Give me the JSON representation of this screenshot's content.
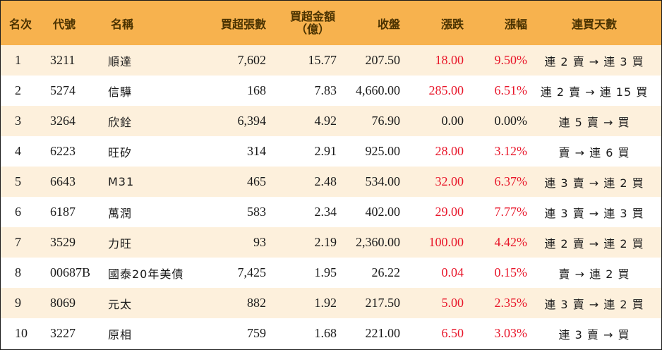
{
  "headers": {
    "rank": "名次",
    "code": "代號",
    "name": "名稱",
    "net_buy_lots": "買超張數",
    "net_buy_amount_line1": "買超金額",
    "net_buy_amount_line2": "（億）",
    "close": "收盤",
    "change": "漲跌",
    "change_pct": "漲幅",
    "consecutive_buy_days": "連買天數"
  },
  "colors": {
    "header_bg": "#f7b24e",
    "row_band": "#fdf0dc",
    "up_red": "#e8162a"
  },
  "rows": [
    {
      "rank": "1",
      "code": "3211",
      "name": "順達",
      "lots": "7,602",
      "amount": "15.77",
      "close": "207.50",
      "change": "18.00",
      "pct": "9.50%",
      "streak": "連 2 賣 → 連 3 買",
      "up": true
    },
    {
      "rank": "2",
      "code": "5274",
      "name": "信驊",
      "lots": "168",
      "amount": "7.83",
      "close": "4,660.00",
      "change": "285.00",
      "pct": "6.51%",
      "streak": "連 2 賣 → 連 15 買",
      "up": true
    },
    {
      "rank": "3",
      "code": "3264",
      "name": "欣銓",
      "lots": "6,394",
      "amount": "4.92",
      "close": "76.90",
      "change": "0.00",
      "pct": "0.00%",
      "streak": "連 5 賣 → 買",
      "up": false
    },
    {
      "rank": "4",
      "code": "6223",
      "name": "旺矽",
      "lots": "314",
      "amount": "2.91",
      "close": "925.00",
      "change": "28.00",
      "pct": "3.12%",
      "streak": "賣 → 連 6 買",
      "up": true
    },
    {
      "rank": "5",
      "code": "6643",
      "name": "M31",
      "lots": "465",
      "amount": "2.48",
      "close": "534.00",
      "change": "32.00",
      "pct": "6.37%",
      "streak": "連 3 賣 → 連 2 買",
      "up": true
    },
    {
      "rank": "6",
      "code": "6187",
      "name": "萬潤",
      "lots": "583",
      "amount": "2.34",
      "close": "402.00",
      "change": "29.00",
      "pct": "7.77%",
      "streak": "連 3 賣 → 連 3 買",
      "up": true
    },
    {
      "rank": "7",
      "code": "3529",
      "name": "力旺",
      "lots": "93",
      "amount": "2.19",
      "close": "2,360.00",
      "change": "100.00",
      "pct": "4.42%",
      "streak": "連 2 賣 → 連 2 買",
      "up": true
    },
    {
      "rank": "8",
      "code": "00687B",
      "name": "國泰20年美債",
      "lots": "7,425",
      "amount": "1.95",
      "close": "26.22",
      "change": "0.04",
      "pct": "0.15%",
      "streak": "賣 → 連 2 買",
      "up": true
    },
    {
      "rank": "9",
      "code": "8069",
      "name": "元太",
      "lots": "882",
      "amount": "1.92",
      "close": "217.50",
      "change": "5.00",
      "pct": "2.35%",
      "streak": "連 3 賣 → 連 2 買",
      "up": true
    },
    {
      "rank": "10",
      "code": "3227",
      "name": "原相",
      "lots": "759",
      "amount": "1.68",
      "close": "221.00",
      "change": "6.50",
      "pct": "3.03%",
      "streak": "連 3 賣 → 買",
      "up": true
    }
  ]
}
